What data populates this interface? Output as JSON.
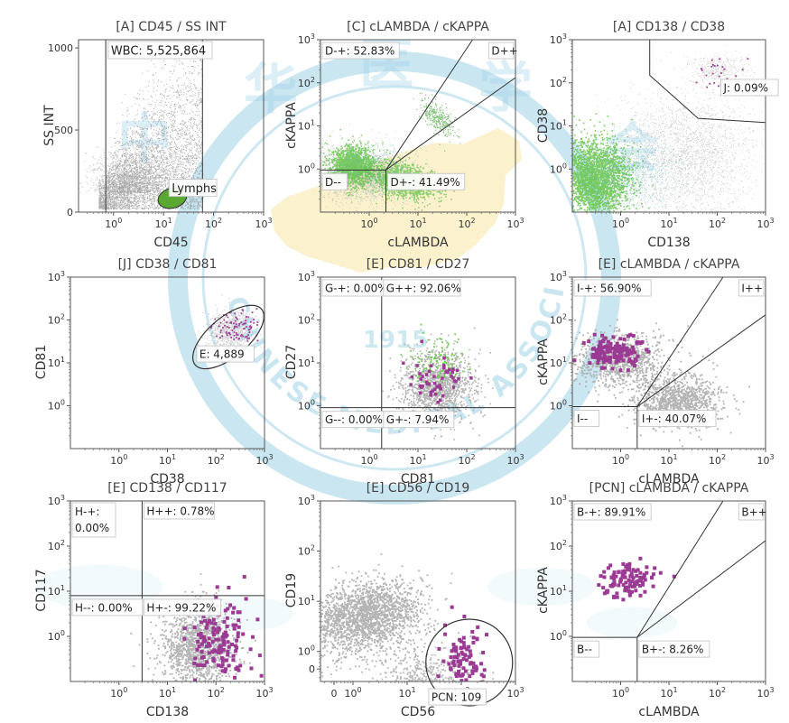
{
  "figure": {
    "watermark": {
      "ring_text": "CHINESE MEDICAL ASSOCIATION",
      "year": "1915",
      "seal_chars": "中华医学会"
    }
  },
  "chart_data": [
    {
      "id": "p1",
      "type": "scatter",
      "title": "[A] CD45 / SS INT",
      "xlabel": "CD45",
      "ylabel": "SS INT",
      "xscale": "log",
      "xlim": [
        0.2,
        1000
      ],
      "xticks": [
        "10^0",
        "10^1",
        "10^2",
        "10^3"
      ],
      "yscale": "linear",
      "ylim": [
        0,
        1050
      ],
      "yticks": [
        "0",
        "500",
        "1000"
      ],
      "gates": [
        {
          "name": "WBC",
          "label": "WBC: 5,525,864",
          "shape": "rect",
          "x": [
            0.7,
            60
          ],
          "y": [
            0,
            1050
          ]
        },
        {
          "name": "Lymphs",
          "label": "Lymphs",
          "shape": "ellipse",
          "cx": 15,
          "cy": 85,
          "color": "#5aa832"
        }
      ],
      "populations": [
        {
          "color": "#8c8c8c",
          "description": "large dense gray cloud"
        }
      ]
    },
    {
      "id": "p2",
      "type": "scatter",
      "title": "[C] cLAMBDA / cKAPPA",
      "xlabel": "cLAMBDA",
      "ylabel": "cKAPPA",
      "xscale": "log",
      "xlim": [
        0.1,
        1000
      ],
      "yscale": "log",
      "ylim": [
        0.1,
        1000
      ],
      "xticks": [
        "10^0",
        "10^1",
        "10^2",
        "10^3"
      ],
      "yticks": [
        "10^0",
        "10^1",
        "10^2",
        "10^3"
      ],
      "quadrants": [
        {
          "name": "D-+",
          "label": "D-+: 52.83%",
          "value": 52.83
        },
        {
          "name": "D++",
          "label": "D++",
          "value": null
        },
        {
          "name": "D--",
          "label": "D--",
          "value": null
        },
        {
          "name": "D+-",
          "label": "D+-: 41.49%",
          "value": 41.49
        }
      ],
      "populations": [
        {
          "color": "#66c544"
        },
        {
          "color": "#58b8b0"
        }
      ]
    },
    {
      "id": "p3",
      "type": "scatter",
      "title": "[A] CD138 / CD38",
      "xlabel": "CD138",
      "ylabel": "CD38",
      "xscale": "log",
      "xlim": [
        0.1,
        1000
      ],
      "yscale": "log",
      "ylim": [
        0.1,
        1000
      ],
      "xticks": [
        "10^0",
        "10^1",
        "10^2",
        "10^3"
      ],
      "yticks": [
        "10^0",
        "10^1",
        "10^2",
        "10^3"
      ],
      "gates": [
        {
          "name": "J",
          "label": "J: 0.09%",
          "value": 0.09
        }
      ],
      "populations": [
        {
          "color": "#66c544"
        },
        {
          "color": "#a0a0a0"
        },
        {
          "color": "#9b3a93"
        }
      ]
    },
    {
      "id": "p4",
      "type": "scatter",
      "title": "[J] CD38 / CD81",
      "xlabel": "CD38",
      "ylabel": "CD81",
      "xscale": "log",
      "xlim": [
        0.1,
        1000
      ],
      "yscale": "log",
      "ylim": [
        0.1,
        1000
      ],
      "xticks": [
        "10^0",
        "10^1",
        "10^2",
        "10^3"
      ],
      "yticks": [
        "10^0",
        "10^1",
        "10^2",
        "10^3"
      ],
      "gates": [
        {
          "name": "E",
          "label": "E: 4,889",
          "value": 4889
        }
      ],
      "populations": [
        {
          "color": "#9b3a93"
        },
        {
          "color": "#a0a0a0"
        }
      ]
    },
    {
      "id": "p5",
      "type": "scatter",
      "title": "[E] CD81 / CD27",
      "xlabel": "CD81",
      "ylabel": "CD27",
      "xscale": "log",
      "xlim": [
        0.1,
        1000
      ],
      "yscale": "log",
      "ylim": [
        0.1,
        1000
      ],
      "xticks": [
        "10^0",
        "10^1",
        "10^2",
        "10^3"
      ],
      "yticks": [
        "10^0",
        "10^1",
        "10^2",
        "10^3"
      ],
      "quadrants": [
        {
          "name": "G-+",
          "label": "G-+: 0.00%",
          "value": 0.0
        },
        {
          "name": "G++",
          "label": "G++: 92.06%",
          "value": 92.06
        },
        {
          "name": "G--",
          "label": "G--: 0.00%",
          "value": 0.0
        },
        {
          "name": "G+-",
          "label": "G+-: 7.94%",
          "value": 7.94
        }
      ],
      "populations": [
        {
          "color": "#9b3a93"
        },
        {
          "color": "#a0a0a0"
        },
        {
          "color": "#66c544"
        }
      ]
    },
    {
      "id": "p6",
      "type": "scatter",
      "title": "[E] cLAMBDA / cKAPPA",
      "xlabel": "cLAMBDA",
      "ylabel": "cKAPPA",
      "xscale": "log",
      "xlim": [
        0.1,
        1000
      ],
      "yscale": "log",
      "ylim": [
        0.1,
        1000
      ],
      "xticks": [
        "10^0",
        "10^1",
        "10^2",
        "10^3"
      ],
      "yticks": [
        "10^0",
        "10^1",
        "10^2",
        "10^3"
      ],
      "quadrants": [
        {
          "name": "I-+",
          "label": "I-+: 56.90%",
          "value": 56.9
        },
        {
          "name": "I++",
          "label": "I++",
          "value": null
        },
        {
          "name": "I--",
          "label": "I--",
          "value": null
        },
        {
          "name": "I+-",
          "label": "I+-: 40.07%",
          "value": 40.07
        }
      ],
      "populations": [
        {
          "color": "#9b3a93"
        },
        {
          "color": "#a0a0a0"
        }
      ]
    },
    {
      "id": "p7",
      "type": "scatter",
      "title": "[E] CD138 / CD117",
      "xlabel": "CD138",
      "ylabel": "CD117",
      "xscale": "log",
      "xlim": [
        0.1,
        1000
      ],
      "yscale": "log",
      "ylim": [
        0.1,
        1000
      ],
      "xticks": [
        "10^0",
        "10^1",
        "10^2",
        "10^3"
      ],
      "yticks": [
        "10^0",
        "10^1",
        "10^2",
        "10^3"
      ],
      "quadrants": [
        {
          "name": "H-+",
          "label": "H-+:",
          "label2": "0.00%",
          "value": 0.0
        },
        {
          "name": "H++",
          "label": "H++: 0.78%",
          "value": 0.78
        },
        {
          "name": "H--",
          "label": "H--: 0.00%",
          "value": 0.0
        },
        {
          "name": "H+-",
          "label": "H+-: 99.22%",
          "value": 99.22
        }
      ],
      "populations": [
        {
          "color": "#9b3a93"
        },
        {
          "color": "#a0a0a0"
        }
      ]
    },
    {
      "id": "p8",
      "type": "scatter",
      "title": "[E] CD56 / CD19",
      "xlabel": "CD56",
      "ylabel": "CD19",
      "xscale": "log",
      "xlim": [
        -0.4,
        1000
      ],
      "yscale": "log",
      "ylim": [
        -0.4,
        1000
      ],
      "xticks": [
        "0",
        "10^0",
        "10^1",
        "10^2",
        "10^3"
      ],
      "yticks": [
        "0",
        "10^0",
        "10^1",
        "10^2",
        "10^3"
      ],
      "gates": [
        {
          "name": "PCN",
          "label": "PCN: 109",
          "value": 109
        }
      ],
      "populations": [
        {
          "color": "#9b3a93"
        },
        {
          "color": "#a0a0a0"
        }
      ]
    },
    {
      "id": "p9",
      "type": "scatter",
      "title": "[PCN] cLAMBDA / cKAPPA",
      "xlabel": "cLAMBDA",
      "ylabel": "cKAPPA",
      "xscale": "log",
      "xlim": [
        0.1,
        1000
      ],
      "yscale": "log",
      "ylim": [
        0.1,
        1000
      ],
      "xticks": [
        "10^0",
        "10^1",
        "10^2",
        "10^3"
      ],
      "yticks": [
        "10^0",
        "10^1",
        "10^2",
        "10^3"
      ],
      "quadrants": [
        {
          "name": "B-+",
          "label": "B-+: 89.91%",
          "value": 89.91
        },
        {
          "name": "B++",
          "label": "B++",
          "value": null
        },
        {
          "name": "B--",
          "label": "B--",
          "value": null
        },
        {
          "name": "B+-",
          "label": "B+-: 8.26%",
          "value": 8.26
        }
      ],
      "populations": [
        {
          "color": "#9b3a93"
        }
      ]
    }
  ]
}
